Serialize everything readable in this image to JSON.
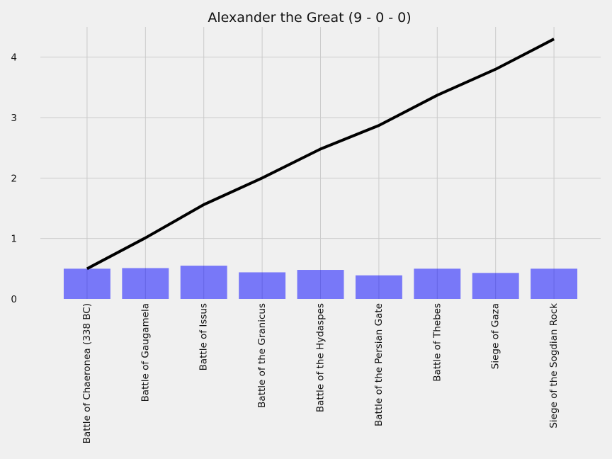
{
  "chart_data": {
    "type": "bar",
    "title": "Alexander the Great (9 - 0 - 0)",
    "xlabel": "",
    "ylabel": "",
    "categories": [
      "Battle of Chaeronea (338 BC)",
      "Battle of Gaugamela",
      "Battle of Issus",
      "Battle of the Granicus",
      "Battle of the Hydaspes",
      "Battle of the Persian Gate",
      "Battle of Thebes",
      "Siege of Gaza",
      "Siege of the Sogdian Rock"
    ],
    "series": [
      {
        "type": "bar",
        "values": [
          0.5,
          0.51,
          0.55,
          0.44,
          0.48,
          0.39,
          0.5,
          0.43,
          0.5
        ],
        "color": "#0000ff"
      },
      {
        "type": "line",
        "values": [
          0.5,
          1.01,
          1.56,
          2.0,
          2.48,
          2.87,
          3.37,
          3.8,
          4.3
        ],
        "color": "#000000"
      }
    ],
    "ylim": [
      0,
      4.5
    ],
    "yticks": [
      0,
      1,
      2,
      3,
      4
    ],
    "grid": true,
    "legend": "none"
  }
}
